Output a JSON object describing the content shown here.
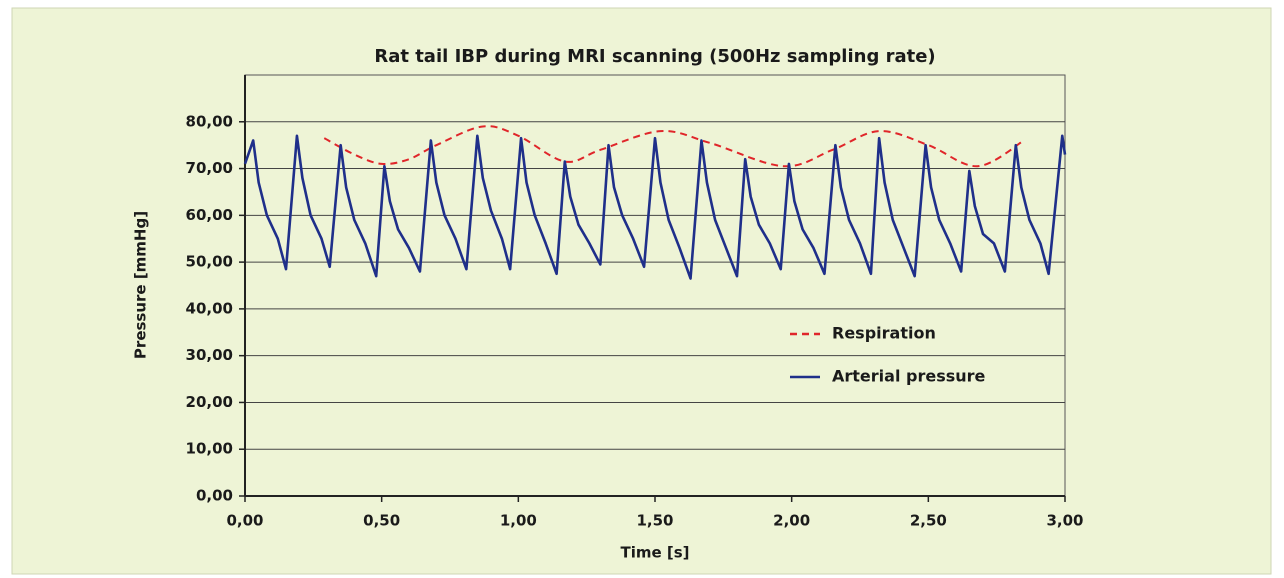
{
  "chart_data": {
    "type": "line",
    "title": "Rat tail IBP during MRI scanning (500Hz sampling rate)",
    "xlabel": "Time [s]",
    "ylabel": "Pressure [mmHg]",
    "xlim": [
      0,
      3
    ],
    "ylim": [
      0,
      90
    ],
    "xticks": [
      {
        "value": 0,
        "label": "0,00"
      },
      {
        "value": 0.5,
        "label": "0,50"
      },
      {
        "value": 1,
        "label": "1,00"
      },
      {
        "value": 1.5,
        "label": "1,50"
      },
      {
        "value": 2,
        "label": "2,00"
      },
      {
        "value": 2.5,
        "label": "2,50"
      },
      {
        "value": 3,
        "label": "3,00"
      }
    ],
    "yticks": [
      {
        "value": 0,
        "label": "0,00"
      },
      {
        "value": 10,
        "label": "10,00"
      },
      {
        "value": 20,
        "label": "20,00"
      },
      {
        "value": 30,
        "label": "30,00"
      },
      {
        "value": 40,
        "label": "40,00"
      },
      {
        "value": 50,
        "label": "50,00"
      },
      {
        "value": 60,
        "label": "60,00"
      },
      {
        "value": 70,
        "label": "70,00"
      },
      {
        "value": 80,
        "label": "80,00"
      }
    ],
    "grid": true,
    "legend": "right",
    "series": [
      {
        "name": "Respiration",
        "color": "#e0262a",
        "line_style": "dashed",
        "smooth": true,
        "x": [
          0.29,
          0.4,
          0.5,
          0.6,
          0.7,
          0.87,
          1.0,
          1.17,
          1.3,
          1.52,
          1.7,
          1.97,
          2.15,
          2.32,
          2.5,
          2.68,
          2.85
        ],
        "values": [
          76.5,
          73,
          71,
          72,
          75,
          79,
          77,
          71.5,
          74,
          78,
          75.5,
          70.5,
          74,
          78,
          75,
          70.5,
          76
        ]
      },
      {
        "name": "Arterial pressure",
        "color": "#1f2f8a",
        "line_style": "solid",
        "smooth": false,
        "x": [
          0,
          0.03,
          0.05,
          0.08,
          0.12,
          0.15,
          0.19,
          0.21,
          0.24,
          0.28,
          0.31,
          0.35,
          0.37,
          0.4,
          0.44,
          0.48,
          0.51,
          0.53,
          0.56,
          0.6,
          0.64,
          0.68,
          0.7,
          0.73,
          0.77,
          0.81,
          0.85,
          0.87,
          0.9,
          0.94,
          0.97,
          1.01,
          1.03,
          1.06,
          1.1,
          1.14,
          1.17,
          1.19,
          1.22,
          1.26,
          1.3,
          1.33,
          1.35,
          1.38,
          1.42,
          1.46,
          1.5,
          1.52,
          1.55,
          1.59,
          1.63,
          1.67,
          1.69,
          1.72,
          1.76,
          1.8,
          1.83,
          1.85,
          1.88,
          1.92,
          1.96,
          1.99,
          2.01,
          2.04,
          2.08,
          2.12,
          2.16,
          2.18,
          2.21,
          2.25,
          2.29,
          2.32,
          2.34,
          2.37,
          2.41,
          2.45,
          2.49,
          2.51,
          2.54,
          2.58,
          2.62,
          2.65,
          2.67,
          2.7,
          2.74,
          2.78,
          2.82,
          2.84,
          2.87,
          2.91,
          2.94,
          2.99,
          3.0
        ],
        "values": [
          71,
          76,
          67,
          60,
          55,
          48.5,
          77,
          68,
          60,
          55,
          49,
          75,
          66,
          59,
          54,
          47,
          70.5,
          63,
          57,
          53,
          48,
          76,
          67,
          60,
          55,
          48.5,
          77,
          68,
          61,
          55,
          48.5,
          76.5,
          67,
          60,
          54,
          47.5,
          71.5,
          64,
          58,
          54,
          49.5,
          75,
          66,
          60,
          55,
          49,
          76.5,
          67,
          59,
          53,
          46.5,
          76,
          67,
          59,
          53,
          47,
          72,
          64,
          58,
          54,
          48.5,
          71,
          63,
          57,
          53,
          47.5,
          75,
          66,
          59,
          54,
          47.5,
          76.5,
          67,
          59,
          53,
          47,
          75,
          66,
          59,
          54,
          48,
          69.5,
          62,
          56,
          54,
          48,
          75,
          66,
          59,
          54,
          47.5,
          77,
          73
        ]
      }
    ]
  }
}
